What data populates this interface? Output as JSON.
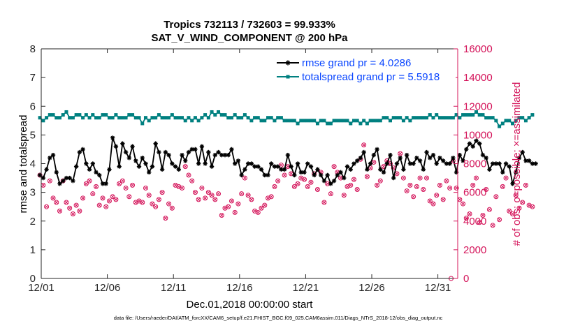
{
  "chart_data": {
    "type": "line",
    "title_line1": "Tropics 732113 / 732603 = 99.933%",
    "title_line2": "SAT_V_WIND_COMPONENT @ 200 hPa",
    "xlabel": "Dec.01,2018 00:00:00 start",
    "ylabel_left": "rmse and totalspread",
    "ylabel_right": "# of obs: o=possible; ×=assimilated",
    "footer": "data file: /Users/raeder/DAI/ATM_forcXX/CAM6_setup/f.e21.FHIST_BGC.f09_025.CAM6assim.011/Diags_NTrS_2018-12/obs_diag_output.nc",
    "xlim": [
      0,
      31.5
    ],
    "xticks": [
      0,
      5,
      10,
      15,
      20,
      25,
      30
    ],
    "xtick_labels": [
      "12/01",
      "12/06",
      "12/11",
      "12/16",
      "12/21",
      "12/26",
      "12/31"
    ],
    "ylim_left": [
      0,
      8
    ],
    "yticks_left": [
      0,
      1,
      2,
      3,
      4,
      5,
      6,
      7,
      8
    ],
    "ylim_right": [
      0,
      16000
    ],
    "yticks_right": [
      0,
      2000,
      4000,
      6000,
      8000,
      10000,
      12000,
      14000,
      16000
    ],
    "grid": false,
    "legend_position": "top-right",
    "colors": {
      "rmse": "#000000",
      "spread": "#008080",
      "obs": "#d4145a"
    },
    "series": [
      {
        "name": "rmse grand pr = 4.0286",
        "axis": "left",
        "marker": "star",
        "values": [
          3.6,
          3.5,
          3.8,
          4.2,
          4.3,
          3.7,
          3.3,
          3.4,
          3.5,
          3.5,
          3.4,
          3.9,
          4.4,
          4.5,
          4.0,
          3.8,
          4.0,
          3.7,
          3.6,
          3.3,
          3.3,
          3.8,
          4.9,
          4.6,
          3.9,
          4.7,
          4.4,
          4.2,
          4.6,
          4.1,
          3.9,
          4.2,
          4.0,
          3.7,
          3.9,
          4.7,
          4.4,
          3.8,
          4.4,
          4.3,
          4.0,
          3.9,
          3.8,
          4.3,
          4.1,
          4.4,
          4.5,
          4.5,
          4.0,
          4.6,
          4.0,
          4.4,
          3.9,
          4.3,
          4.4,
          4.3,
          4.3,
          4.3,
          4.5,
          4.0,
          4.1,
          3.6,
          3.8,
          4.0,
          4.0,
          3.9,
          3.9,
          3.8,
          3.6,
          3.6,
          4.0,
          3.9,
          3.9,
          3.8,
          3.8,
          4.3,
          3.9,
          3.6,
          4.0,
          3.7,
          3.7,
          4.0,
          3.9,
          3.6,
          3.8,
          3.6,
          3.4,
          3.6,
          3.3,
          3.4,
          3.6,
          3.7,
          3.5,
          3.9,
          3.8,
          4.0,
          4.1,
          4.2,
          4.4,
          3.8,
          4.0,
          4.3,
          4.5,
          3.8,
          3.7,
          4.0,
          4.3,
          3.5,
          4.0,
          4.2,
          3.8,
          4.3,
          4.0,
          4.0,
          4.2,
          4.1,
          3.8,
          4.4,
          4.2,
          4.3,
          4.0,
          4.2,
          4.1,
          4.0,
          4.0,
          4.2,
          3.7,
          4.3,
          4.1,
          4.5,
          4.7,
          4.6,
          4.8,
          4.7,
          4.3,
          4.2,
          3.8,
          4.0,
          4.0,
          4.0,
          3.7,
          4.0,
          3.9,
          3.3,
          3.7,
          4.2,
          4.4,
          4.1,
          4.1,
          4.0,
          4.0
        ]
      },
      {
        "name": "totalspread grand pr = 5.5918",
        "axis": "left",
        "marker": "square",
        "values": [
          5.6,
          5.5,
          5.6,
          5.7,
          5.7,
          5.6,
          5.6,
          5.7,
          5.8,
          5.6,
          5.6,
          5.7,
          5.7,
          5.6,
          5.7,
          5.6,
          5.7,
          5.6,
          5.6,
          5.7,
          5.7,
          5.6,
          5.6,
          5.7,
          5.6,
          5.6,
          5.6,
          5.7,
          5.7,
          5.6,
          5.6,
          5.4,
          5.6,
          5.5,
          5.6,
          5.6,
          5.7,
          5.6,
          5.6,
          5.6,
          5.7,
          5.6,
          5.6,
          5.6,
          5.5,
          5.6,
          5.5,
          5.6,
          5.5,
          5.6,
          5.7,
          5.6,
          5.8,
          5.7,
          5.8,
          5.7,
          5.7,
          5.6,
          5.6,
          5.7,
          5.6,
          5.6,
          5.7,
          5.6,
          5.5,
          5.6,
          5.6,
          5.5,
          5.5,
          5.6,
          5.6,
          5.5,
          5.6,
          5.6,
          5.5,
          5.5,
          5.5,
          5.5,
          5.4,
          5.5,
          5.5,
          5.5,
          5.5,
          5.5,
          5.4,
          5.5,
          5.5,
          5.4,
          5.4,
          5.5,
          5.5,
          5.5,
          5.5,
          5.5,
          5.4,
          5.5,
          5.5,
          5.4,
          5.5,
          5.4,
          5.5,
          5.5,
          5.5,
          5.5,
          5.6,
          5.6,
          5.5,
          5.6,
          5.6,
          5.6,
          5.5,
          5.6,
          5.5,
          5.6,
          5.6,
          5.6,
          5.6,
          5.6,
          5.7,
          5.6,
          5.7,
          5.6,
          5.6,
          5.6,
          5.6,
          5.6,
          5.7,
          5.6,
          5.7,
          5.7,
          5.7,
          5.7,
          5.8,
          5.7,
          5.7,
          5.6,
          5.6,
          5.6,
          5.5,
          5.3,
          5.4,
          5.5,
          5.5,
          5.4,
          5.5,
          5.6,
          5.6,
          5.5,
          5.6,
          5.7
        ]
      },
      {
        "name": "# of obs (possible / assimilated)",
        "axis": "right",
        "marker": "circle-x",
        "values": [
          7200,
          6500,
          5000,
          6800,
          5600,
          5300,
          4700,
          6800,
          5300,
          4900,
          4500,
          5100,
          4700,
          5600,
          6600,
          6800,
          5900,
          6400,
          5100,
          5600,
          5000,
          5400,
          5700,
          5500,
          6600,
          6800,
          6300,
          5700,
          6500,
          5300,
          5400,
          5300,
          6300,
          5800,
          5200,
          5000,
          5500,
          6000,
          4200,
          5200,
          4900,
          6500,
          6400,
          6300,
          7800,
          7200,
          6800,
          6000,
          5500,
          6300,
          5600,
          6000,
          5800,
          5500,
          5900,
          4400,
          4900,
          5000,
          5400,
          4600,
          5200,
          5900,
          7000,
          5800,
          5500,
          4700,
          4600,
          4900,
          5100,
          5600,
          5700,
          6400,
          6800,
          7900,
          7200,
          7800,
          7300,
          6400,
          6600,
          7000,
          6900,
          6400,
          6700,
          7300,
          6200,
          7400,
          5300,
          6600,
          5900,
          7800,
          7400,
          7000,
          5800,
          6400,
          6500,
          6900,
          6200,
          8300,
          9300,
          7100,
          7700,
          8100,
          6500,
          6800,
          7800,
          8200,
          8000,
          7700,
          7300,
          8700,
          7000,
          6100,
          6500,
          5700,
          6400,
          7000,
          6200,
          7000,
          5400,
          5200,
          5800,
          6500,
          5500,
          6800,
          6300,
          8200,
          6300,
          5500,
          5200,
          4200,
          4500,
          6500,
          7000,
          3900,
          4400,
          6200,
          4800,
          3700,
          5700,
          4100,
          6400,
          7000,
          4700,
          4500,
          5800,
          4900,
          5300,
          6500,
          5100,
          5000
        ]
      }
    ],
    "extra_points": [
      {
        "x": 31.0,
        "y_right": 0
      }
    ]
  }
}
